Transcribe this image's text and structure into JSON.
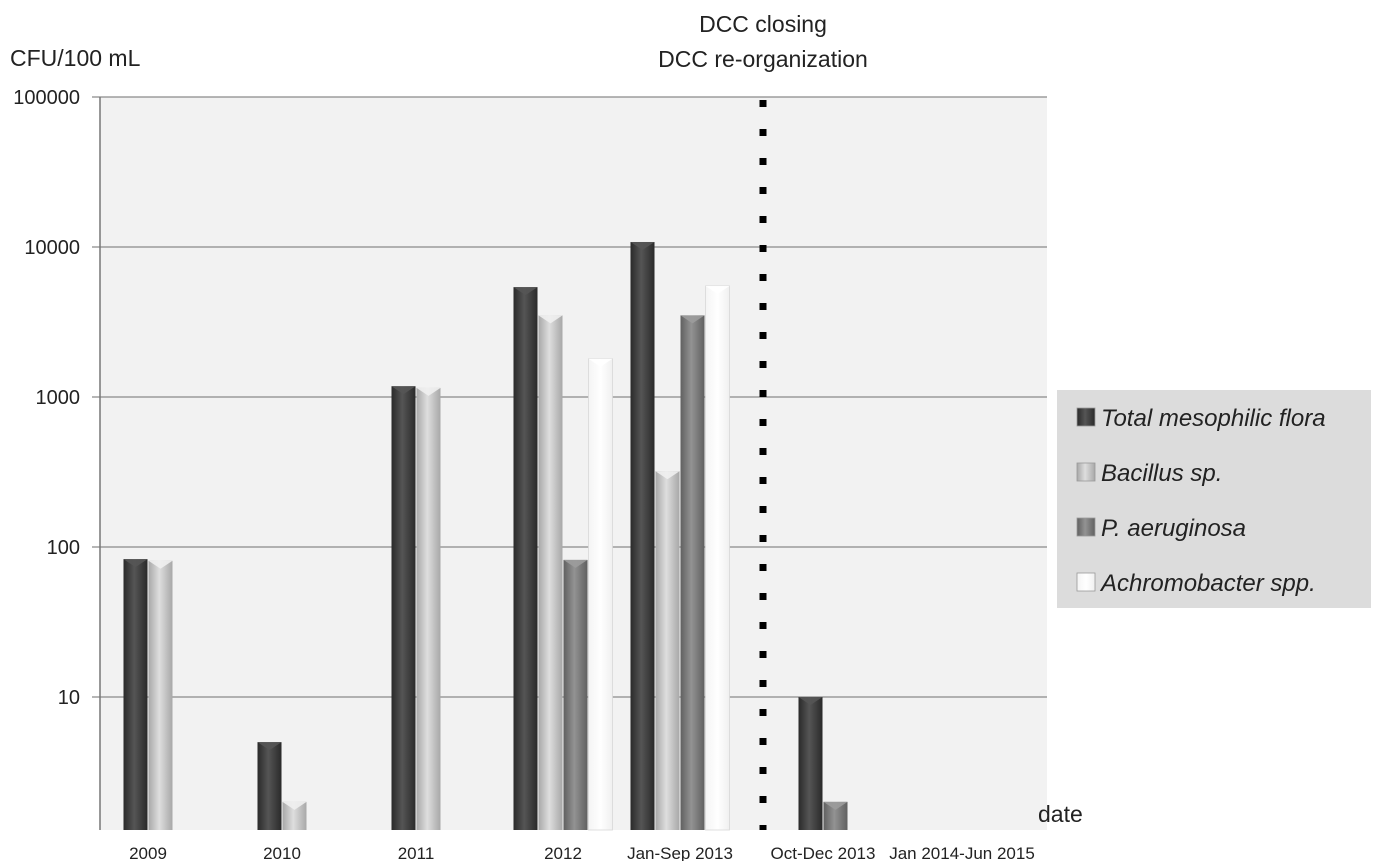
{
  "chart_data": {
    "type": "bar",
    "title": "",
    "ylabel": "CFU/100 mL",
    "xlabel": "date",
    "yscale": "log",
    "ylim": [
      1.5,
      100000
    ],
    "yticks": [
      {
        "value": 10,
        "label": "10"
      },
      {
        "value": 100,
        "label": "100"
      },
      {
        "value": 1000,
        "label": "1000"
      },
      {
        "value": 10000,
        "label": "10000"
      },
      {
        "value": 100000,
        "label": "100000"
      }
    ],
    "grid": true,
    "legend_position": "right",
    "categories": [
      "2009",
      "2010",
      "2011",
      "2012",
      "Jan-Sep 2013",
      "Oct-Dec 2013",
      "Jan 2014-Jun 2015"
    ],
    "series": [
      {
        "name": "Total mesophilic flora",
        "color": "#3a3a3a",
        "values": [
          83,
          5,
          1180,
          5400,
          10800,
          10,
          null
        ]
      },
      {
        "name": "Bacillus sp.",
        "color": "#c4c4c4",
        "values": [
          81,
          2,
          1150,
          3500,
          320,
          null,
          null
        ]
      },
      {
        "name": "P. aeruginosa",
        "color": "#7a7a7a",
        "values": [
          null,
          null,
          null,
          82,
          3500,
          2,
          null
        ]
      },
      {
        "name": "Achromobacter spp.",
        "color": "#ffffff",
        "values": [
          null,
          null,
          null,
          1800,
          5500,
          null,
          null
        ]
      }
    ],
    "annotations": [
      {
        "text_lines": [
          "DCC closing",
          "DCC re-organization"
        ],
        "position": "between Jan-Sep 2013 and Oct-Dec 2013",
        "style": "dotted vertical line"
      }
    ]
  }
}
